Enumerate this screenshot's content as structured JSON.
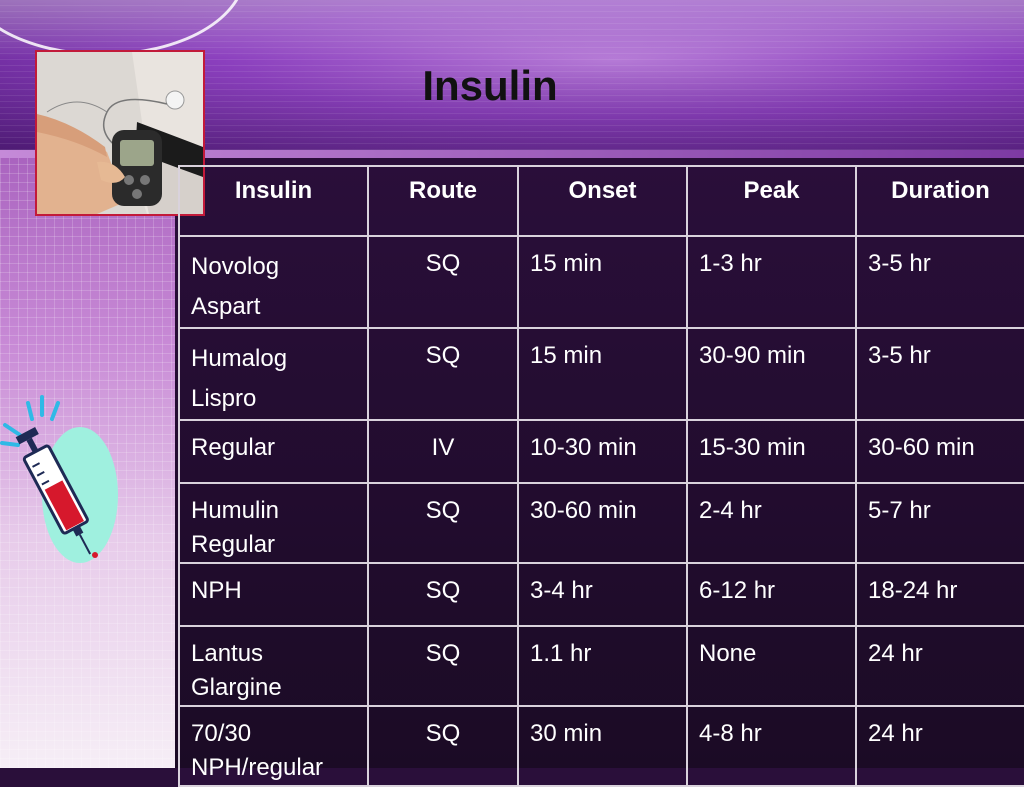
{
  "slide": {
    "title": "Insulin"
  },
  "photo": {
    "icon": "insulin-pump-photo"
  },
  "clipart": {
    "icon": "syringe-icon"
  },
  "table": {
    "headers": [
      "Insulin",
      "Route",
      "Onset",
      "Peak",
      "Duration"
    ],
    "rows": [
      {
        "insulin": [
          "Novolog",
          "Aspart"
        ],
        "route": "SQ",
        "onset": "15 min",
        "peak": "1-3 hr",
        "duration": "3-5 hr"
      },
      {
        "insulin": [
          "Humalog",
          "Lispro"
        ],
        "route": "SQ",
        "onset": "15 min",
        "peak": "30-90 min",
        "duration": "3-5 hr"
      },
      {
        "insulin": [
          "Regular"
        ],
        "route": "IV",
        "onset": "10-30 min",
        "peak": "15-30 min",
        "duration": "30-60 min"
      },
      {
        "insulin": [
          "Humulin",
          "Regular"
        ],
        "route": "SQ",
        "onset": "30-60 min",
        "peak": "2-4 hr",
        "duration": "5-7 hr"
      },
      {
        "insulin": [
          "NPH"
        ],
        "route": "SQ",
        "onset": "3-4 hr",
        "peak": "6-12 hr",
        "duration": "18-24 hr"
      },
      {
        "insulin": [
          "Lantus",
          "Glargine"
        ],
        "route": "SQ",
        "onset": "1.1 hr",
        "peak": "None",
        "duration": "24 hr"
      },
      {
        "insulin": [
          "70/30",
          "NPH/regular"
        ],
        "route": "SQ",
        "onset": "30 min",
        "peak": "4-8 hr",
        "duration": "24 hr"
      }
    ]
  }
}
